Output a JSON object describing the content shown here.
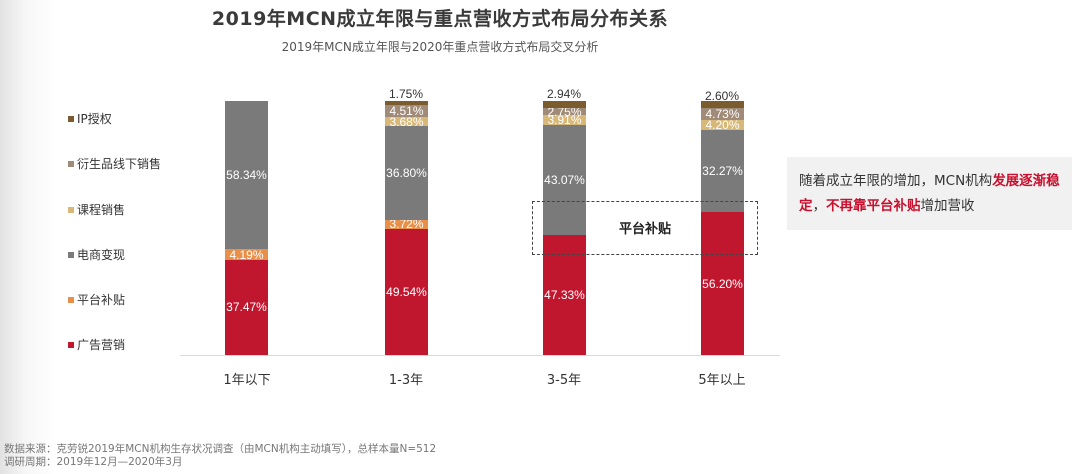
{
  "header": {
    "title": "2019年MCN成立年限与重点营收方式布局分布关系",
    "subtitle": "2019年MCN成立年限与2020年重点营收方式布局交叉分析"
  },
  "legend": [
    {
      "label": "IP授权",
      "color": "#7a5c2e"
    },
    {
      "label": "衍生品线下销售",
      "color": "#a08a78"
    },
    {
      "label": "课程销售",
      "color": "#d8b878"
    },
    {
      "label": "电商变现",
      "color": "#7a7a7a"
    },
    {
      "label": "平台补贴",
      "color": "#e8904a"
    },
    {
      "label": "广告营销",
      "color": "#c0172f"
    }
  ],
  "chart_data": {
    "type": "bar",
    "stacked": true,
    "title": "2019年MCN成立年限与重点营收方式布局分布关系",
    "subtitle": "2019年MCN成立年限与2020年重点营收方式布局交叉分析",
    "xlabel": "",
    "ylabel": "",
    "ylim": [
      0,
      100
    ],
    "grid": false,
    "legend_position": "left",
    "categories": [
      "1年以下",
      "1-3年",
      "3-5年",
      "5年以上"
    ],
    "series": [
      {
        "name": "广告营销",
        "color": "#c0172f",
        "values": [
          37.47,
          49.54,
          47.33,
          56.2
        ]
      },
      {
        "name": "平台补贴",
        "color": "#e8904a",
        "values": [
          4.19,
          3.72,
          0,
          0
        ]
      },
      {
        "name": "电商变现",
        "color": "#7a7a7a",
        "values": [
          58.34,
          36.8,
          43.07,
          32.27
        ]
      },
      {
        "name": "课程销售",
        "color": "#d8b878",
        "values": [
          0,
          3.68,
          3.91,
          4.2
        ]
      },
      {
        "name": "衍生品线下销售",
        "color": "#a08a78",
        "values": [
          0,
          4.51,
          2.75,
          4.73
        ]
      },
      {
        "name": "IP授权",
        "color": "#7a5c2e",
        "values": [
          0,
          1.75,
          2.94,
          2.6
        ]
      }
    ],
    "data_labels": {
      "1年以下": {
        "广告营销": "37.47%",
        "平台补贴": "4.19%",
        "电商变现": "58.34%"
      },
      "1-3年": {
        "广告营销": "49.54%",
        "平台补贴": "3.72%",
        "电商变现": "36.80%",
        "课程销售": "3.68%",
        "衍生品线下销售": "4.51%",
        "IP授权": "1.75%"
      },
      "3-5年": {
        "广告营销": "47.33%",
        "电商变现": "43.07%",
        "课程销售": "3.91%",
        "衍生品线下销售": "2.75%",
        "IP授权": "2.94%"
      },
      "5年以上": {
        "广告营销": "56.20%",
        "电商变现": "32.27%",
        "课程销售": "4.20%",
        "衍生品线下销售": "4.73%",
        "IP授权": "2.60%"
      }
    },
    "annotations": [
      "平台补贴",
      "随着成立年限的增加，MCN机构发展逐渐稳定，不再靠平台补贴增加营收"
    ]
  },
  "bars": [
    {
      "category": "1年以下",
      "segments": [
        {
          "label": "37.47%",
          "pct": 37.47,
          "color": "#c0172f"
        },
        {
          "label": "4.19%",
          "pct": 4.19,
          "color": "#e8904a"
        },
        {
          "label": "58.34%",
          "pct": 58.34,
          "color": "#7a7a7a"
        }
      ],
      "top_label": ""
    },
    {
      "category": "1-3年",
      "segments": [
        {
          "label": "49.54%",
          "pct": 49.54,
          "color": "#c0172f"
        },
        {
          "label": "3.72%",
          "pct": 3.72,
          "color": "#e8904a"
        },
        {
          "label": "36.80%",
          "pct": 36.8,
          "color": "#7a7a7a"
        },
        {
          "label": "3.68%",
          "pct": 3.68,
          "color": "#d8b878"
        },
        {
          "label": "4.51%",
          "pct": 4.51,
          "color": "#a08a78"
        },
        {
          "label": "",
          "pct": 1.75,
          "color": "#7a5c2e"
        }
      ],
      "top_label": "1.75%"
    },
    {
      "category": "3-5年",
      "segments": [
        {
          "label": "47.33%",
          "pct": 47.33,
          "color": "#c0172f"
        },
        {
          "label": "43.07%",
          "pct": 43.07,
          "color": "#7a7a7a"
        },
        {
          "label": "3.91%",
          "pct": 3.91,
          "color": "#d8b878"
        },
        {
          "label": "2.75%",
          "pct": 2.75,
          "color": "#a08a78"
        },
        {
          "label": "",
          "pct": 2.94,
          "color": "#7a5c2e"
        }
      ],
      "top_label": "2.94%"
    },
    {
      "category": "5年以上",
      "segments": [
        {
          "label": "56.20%",
          "pct": 56.2,
          "color": "#c0172f"
        },
        {
          "label": "32.27%",
          "pct": 32.27,
          "color": "#7a7a7a"
        },
        {
          "label": "4.20%",
          "pct": 4.2,
          "color": "#d8b878"
        },
        {
          "label": "4.73%",
          "pct": 4.73,
          "color": "#a08a78"
        },
        {
          "label": "",
          "pct": 2.6,
          "color": "#7a5c2e"
        }
      ],
      "top_label": "2.60%"
    }
  ],
  "highlight_box": {
    "label": "平台补贴"
  },
  "note": {
    "part1": "随着成立年限的增加，MCN机构",
    "highlight1": "发展逐渐稳定",
    "part2": "，",
    "highlight2": "不再靠平台补贴",
    "part3": "增加营收"
  },
  "footer": {
    "source": "数据来源：克劳锐2019年MCN机构生存状况调查（由MCN机构主动填写），总样本量N=512",
    "period": "调研周期：2019年12月—2020年3月"
  }
}
